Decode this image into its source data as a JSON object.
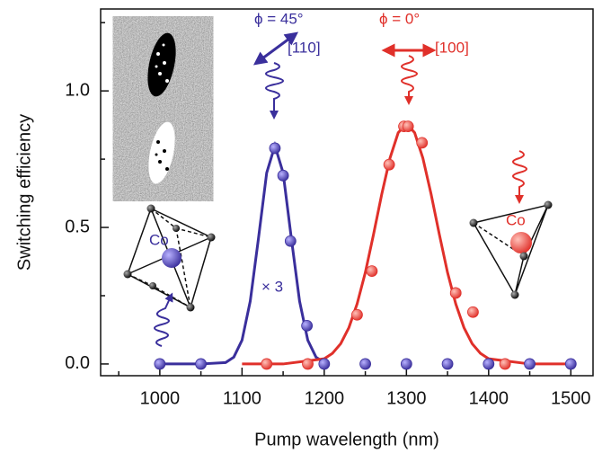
{
  "chart_data": {
    "type": "scatter",
    "xlabel": "Pump wavelength (nm)",
    "ylabel": "Switching efficiency",
    "xlim": [
      928,
      1527
    ],
    "ylim": [
      -0.043,
      1.3
    ],
    "xticks": [
      1000,
      1100,
      1200,
      1300,
      1400,
      1500
    ],
    "xminorticks": [
      950,
      1050,
      1150,
      1250,
      1350,
      1450
    ],
    "yticks": [
      {
        "value": 0,
        "label": "0.0"
      },
      {
        "value": 0.5,
        "label": "0.5"
      },
      {
        "value": 1,
        "label": "1.0"
      }
    ],
    "yminorticks": [
      0.25,
      0.75,
      1.25
    ],
    "series": [
      {
        "color": "#3a2f9c",
        "x": [
          1000,
          1050,
          1140,
          1150,
          1159,
          1179,
          1200,
          1250,
          1300,
          1350,
          1400,
          1450,
          1500
        ],
        "values": [
          0,
          0,
          0.79,
          0.69,
          0.45,
          0.14,
          0,
          0,
          0,
          0,
          0,
          0,
          0
        ]
      },
      {
        "color": "#e0302a",
        "x": [
          1130,
          1180,
          1240,
          1258,
          1279,
          1297,
          1302,
          1319,
          1360,
          1381,
          1420
        ],
        "values": [
          0,
          0,
          0.18,
          0.34,
          0.73,
          0.87,
          0.87,
          0.81,
          0.26,
          0.19,
          0
        ]
      }
    ],
    "fits": [
      {
        "color": "#3a2f9c",
        "x": [
          1000,
          1050,
          1080,
          1090,
          1100,
          1110,
          1120,
          1130,
          1140,
          1150,
          1160,
          1170,
          1180,
          1190,
          1200
        ],
        "values": [
          0,
          0,
          0.005,
          0.025,
          0.087,
          0.23,
          0.46,
          0.7,
          0.8,
          0.7,
          0.46,
          0.23,
          0.087,
          0.025,
          0.005
        ]
      },
      {
        "color": "#e0302a",
        "x": [
          1100,
          1150,
          1200,
          1210,
          1220,
          1230,
          1240,
          1250,
          1260,
          1270,
          1280,
          1290,
          1300,
          1310,
          1320,
          1330,
          1340,
          1350,
          1360,
          1370,
          1380,
          1390,
          1400,
          1450,
          1500
        ],
        "values": [
          0,
          0,
          0.019,
          0.039,
          0.074,
          0.133,
          0.22,
          0.335,
          0.475,
          0.622,
          0.754,
          0.847,
          0.88,
          0.847,
          0.754,
          0.622,
          0.475,
          0.335,
          0.22,
          0.133,
          0.074,
          0.039,
          0.019,
          0,
          0
        ]
      }
    ],
    "annotations": [
      "ϕ = 45°",
      "[110]",
      "ϕ = 0°",
      "[100]",
      "× 3",
      "Co",
      "Co"
    ]
  }
}
